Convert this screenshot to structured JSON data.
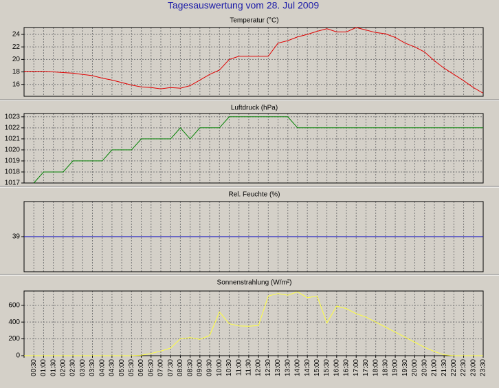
{
  "title": "Tagesauswertung vom 28. Jul 2009",
  "chart_data": [
    {
      "type": "line",
      "title": "Temperatur (°C)",
      "series": [
        {
          "color": "#e00000",
          "values": [
            18.1,
            18.1,
            18.1,
            18.0,
            17.9,
            17.8,
            17.6,
            17.4,
            17.0,
            16.7,
            16.3,
            15.9,
            15.6,
            15.5,
            15.3,
            15.5,
            15.4,
            15.8,
            16.7,
            17.6,
            18.3,
            20.0,
            20.5,
            20.5,
            20.5,
            20.5,
            22.6,
            23.0,
            23.6,
            24.0,
            24.5,
            24.9,
            24.4,
            24.4,
            25.1,
            24.7,
            24.3,
            24.1,
            23.5,
            22.6,
            22.0,
            21.2,
            19.8,
            18.6,
            17.6,
            16.6,
            15.5,
            14.6
          ]
        }
      ],
      "ylim": [
        14.1,
        25.1
      ],
      "yticks": [
        16,
        18,
        20,
        22,
        24
      ],
      "grid": true
    },
    {
      "type": "line",
      "title": "Luftdruck (hPa)",
      "series": [
        {
          "color": "#008000",
          "values": [
            null,
            1017,
            1018,
            1018,
            1018,
            1019,
            1019,
            1019,
            1019,
            1020,
            1020,
            1020,
            1021,
            1021,
            1021,
            1021,
            1022,
            1021,
            1022,
            1022,
            1022,
            1023,
            1023,
            1023,
            1023,
            1023,
            1023,
            1023,
            1022,
            1022,
            1022,
            1022,
            1022,
            1022,
            1022,
            1022,
            1022,
            1022,
            1022,
            1022,
            1022,
            1022,
            1022,
            1022,
            1022,
            1022,
            1022,
            1022
          ]
        }
      ],
      "ylim": [
        1017,
        1023.3
      ],
      "yticks": [
        1017,
        1018,
        1019,
        1020,
        1021,
        1022,
        1023
      ],
      "grid": true
    },
    {
      "type": "line",
      "title": "Rel. Feuchte (%)",
      "series": [
        {
          "color": "#0000c0",
          "values": [
            39,
            39,
            39,
            39,
            39,
            39,
            39,
            39,
            39,
            39,
            39,
            39,
            39,
            39,
            39,
            39,
            39,
            39,
            39,
            39,
            39,
            39,
            39,
            39,
            39,
            39,
            39,
            39,
            39,
            39,
            39,
            39,
            39,
            39,
            39,
            39,
            39,
            39,
            39,
            39,
            39,
            39,
            39,
            39,
            39,
            39,
            39,
            39
          ]
        }
      ],
      "ylim": [
        34,
        44
      ],
      "yticks": [
        39
      ],
      "grid": true
    },
    {
      "type": "line",
      "title": "Sonnenstrahlung (W/m²)",
      "categories": [
        null,
        "00:30",
        "01:00",
        "01:30",
        "02:00",
        "02:30",
        "03:00",
        "03:30",
        "04:00",
        "04:30",
        "05:00",
        "05:30",
        "06:00",
        "06:30",
        "07:00",
        "07:30",
        "08:00",
        "08:30",
        "09:00",
        "09:30",
        "10:00",
        "10:30",
        "11:00",
        "11:30",
        "12:00",
        "12:30",
        "13:00",
        "13:30",
        "14:00",
        "14:30",
        "15:00",
        "15:30",
        "16:00",
        "16:30",
        "17:00",
        "17:30",
        "18:00",
        "18:30",
        "19:00",
        "19:30",
        "20:00",
        "20:30",
        "21:00",
        "21:30",
        "22:00",
        "22:30",
        "23:00",
        "23:30"
      ],
      "series": [
        {
          "color": "#ffff40",
          "values": [
            0,
            0,
            0,
            0,
            0,
            0,
            0,
            0,
            0,
            0,
            0,
            0,
            5,
            25,
            55,
            90,
            200,
            215,
            195,
            240,
            520,
            380,
            355,
            350,
            360,
            710,
            740,
            720,
            760,
            690,
            710,
            390,
            590,
            560,
            500,
            460,
            400,
            340,
            280,
            220,
            160,
            100,
            50,
            10,
            0,
            0,
            0,
            0
          ]
        }
      ],
      "ylim": [
        0,
        770
      ],
      "yticks": [
        0,
        200,
        400,
        600
      ],
      "grid": true
    }
  ]
}
